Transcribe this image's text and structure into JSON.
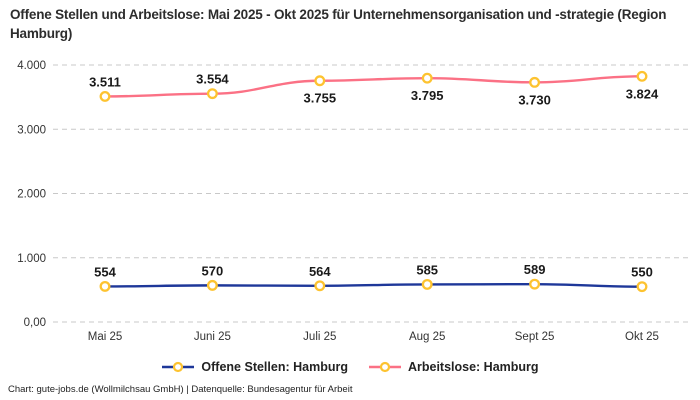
{
  "title": "Offene Stellen und Arbeitslose: Mai 2025 - Okt 2025 für Unternehmensorganisation und -strategie (Region Hamburg)",
  "footer": "Chart: gute-jobs.de (Wollmilchsau GmbH) | Datenquelle: Bundesagentur für Arbeit",
  "colors": {
    "open_positions_line": "#1e3799",
    "unemployed_line": "#fb7185",
    "marker_ring": "#fdc330",
    "marker_fill": "#ffffff",
    "gridline": "#c8c8c8",
    "axis_text": "#333333",
    "point_label_text": "#1a1a1a",
    "title_text": "#2d2d2d"
  },
  "chart_data": {
    "type": "line",
    "categories": [
      "Mai 25",
      "Juni 25",
      "Juli 25",
      "Aug 25",
      "Sept 25",
      "Okt 25"
    ],
    "series": [
      {
        "name": "Offene Stellen: Hamburg",
        "values": [
          554,
          570,
          564,
          585,
          589,
          550
        ],
        "labels": [
          "554",
          "570",
          "564",
          "585",
          "589",
          "550"
        ],
        "label_position": [
          "above",
          "above",
          "above",
          "above",
          "above",
          "above"
        ],
        "color_key": "open_positions_line"
      },
      {
        "name": "Arbeitslose: Hamburg",
        "values": [
          3511,
          3554,
          3755,
          3795,
          3730,
          3824
        ],
        "labels": [
          "3.511",
          "3.554",
          "3.755",
          "3.795",
          "3.730",
          "3.824"
        ],
        "label_position": [
          "above",
          "above",
          "below",
          "below",
          "below",
          "below"
        ],
        "color_key": "unemployed_line"
      }
    ],
    "y_ticks": [
      {
        "value": 0,
        "label": "0,00"
      },
      {
        "value": 1000,
        "label": "1.000"
      },
      {
        "value": 2000,
        "label": "2.000"
      },
      {
        "value": 3000,
        "label": "3.000"
      },
      {
        "value": 4000,
        "label": "4.000"
      }
    ],
    "ylim": [
      0,
      4000
    ],
    "grid": "dashed-horizontal",
    "legend_position": "bottom"
  }
}
